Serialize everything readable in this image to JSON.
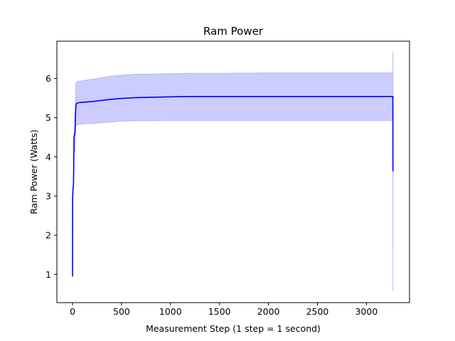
{
  "chart_data": {
    "type": "line",
    "title": "Ram Power",
    "xlabel": "Measurement Step (1 step = 1 second)",
    "ylabel": "Ram Power (Watts)",
    "xlim": [
      -160,
      3440
    ],
    "ylim": [
      0.28,
      6.95
    ],
    "xticks": [
      0,
      500,
      1000,
      1500,
      2000,
      2500,
      3000
    ],
    "yticks": [
      1,
      2,
      3,
      4,
      5,
      6
    ],
    "grid": false,
    "legend": "none",
    "colors": {
      "line": "#0000ff",
      "band": "#ccccff",
      "band_edge": "#b8b8f0"
    },
    "series": [
      {
        "x": [
          0,
          0.5,
          5,
          10,
          15,
          20,
          25,
          30,
          35,
          40,
          50,
          60,
          100,
          200,
          300,
          400,
          500,
          650,
          800,
          1000,
          1200,
          1500,
          2000,
          2500,
          3000,
          3270,
          3271
        ],
        "y": [
          0.95,
          2.95,
          3.2,
          3.3,
          4.5,
          4.55,
          4.6,
          5.1,
          5.33,
          5.36,
          5.37,
          5.38,
          5.39,
          5.41,
          5.44,
          5.47,
          5.49,
          5.51,
          5.52,
          5.53,
          5.54,
          5.54,
          5.54,
          5.54,
          5.54,
          5.54,
          3.63
        ],
        "upper": [
          0.97,
          3.0,
          3.25,
          3.4,
          4.6,
          4.7,
          4.8,
          5.5,
          5.88,
          5.91,
          5.92,
          5.93,
          5.94,
          5.98,
          6.02,
          6.06,
          6.08,
          6.11,
          6.11,
          6.12,
          6.13,
          6.13,
          6.14,
          6.14,
          6.14,
          6.14,
          6.67
        ],
        "lower": [
          0.92,
          2.9,
          3.1,
          3.2,
          4.4,
          4.4,
          4.1,
          4.75,
          4.8,
          4.81,
          4.82,
          4.83,
          4.84,
          4.85,
          4.87,
          4.89,
          4.91,
          4.92,
          4.92,
          4.93,
          4.93,
          4.93,
          4.93,
          4.93,
          4.93,
          4.93,
          0.58
        ]
      }
    ]
  }
}
